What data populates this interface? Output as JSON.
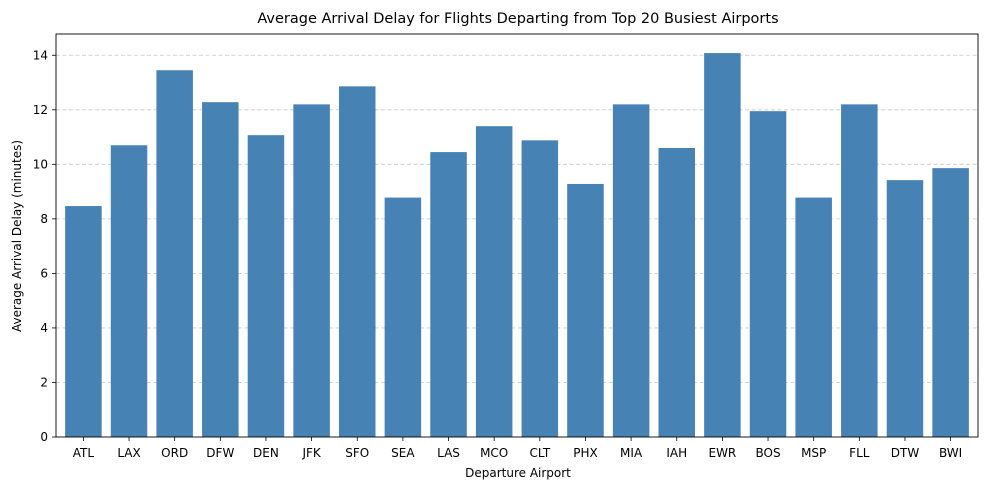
{
  "chart_data": {
    "type": "bar",
    "title": "Average Arrival Delay for Flights Departing from Top 20 Busiest Airports",
    "xlabel": "Departure Airport",
    "ylabel": "Average Arrival Delay (minutes)",
    "categories": [
      "ATL",
      "LAX",
      "ORD",
      "DFW",
      "DEN",
      "JFK",
      "SFO",
      "SEA",
      "LAS",
      "MCO",
      "CLT",
      "PHX",
      "MIA",
      "IAH",
      "EWR",
      "BOS",
      "MSP",
      "FLL",
      "DTW",
      "BWI"
    ],
    "values": [
      8.47,
      10.7,
      13.45,
      12.28,
      11.07,
      12.2,
      12.86,
      8.78,
      10.45,
      11.4,
      10.88,
      9.28,
      12.2,
      10.6,
      14.08,
      11.95,
      8.78,
      12.2,
      9.42,
      9.86
    ],
    "ylim": [
      0,
      14.78
    ],
    "yticks": [
      0,
      2,
      4,
      6,
      8,
      10,
      12,
      14
    ],
    "grid": "y-dashed",
    "bar_color": "#4682b4",
    "grid_color": "#c8c8c8"
  }
}
